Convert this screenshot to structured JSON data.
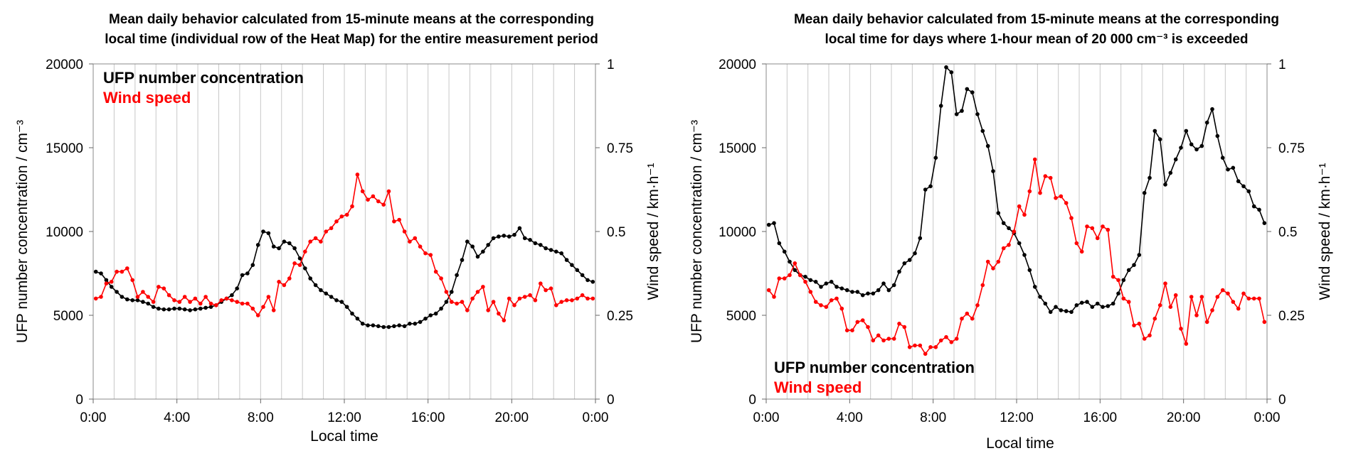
{
  "chart_data": [
    {
      "type": "line",
      "title": [
        "Mean daily behavior calculated from 15-minute means at the corresponding",
        "local time (individual row of the Heat Map) for the entire measurement period"
      ],
      "xlabel": "Local time",
      "ylabel": "UFP number concentration / cm⁻³",
      "y2label": "Wind speed / km·h⁻¹",
      "xticks": [
        "0:00",
        "4:00",
        "8:00",
        "12:00",
        "16:00",
        "20:00",
        "0:00"
      ],
      "yticks": [
        "0",
        "5000",
        "10000",
        "15000",
        "20000"
      ],
      "y2ticks": [
        "0",
        "0.25",
        "0.5",
        "0.75",
        "1"
      ],
      "ylim": [
        0,
        20000
      ],
      "y2lim": [
        0,
        1
      ],
      "xlim_hours": [
        0,
        24
      ],
      "legend_position": "top-left",
      "series": [
        {
          "name": "UFP number concentration",
          "axis": "left",
          "color": "#000000",
          "x_hours": [
            0.125,
            0.375,
            0.625,
            0.875,
            1.125,
            1.375,
            1.625,
            1.875,
            2.125,
            2.375,
            2.625,
            2.875,
            3.125,
            3.375,
            3.625,
            3.875,
            4.125,
            4.375,
            4.625,
            4.875,
            5.125,
            5.375,
            5.625,
            5.875,
            6.125,
            6.375,
            6.625,
            6.875,
            7.125,
            7.375,
            7.625,
            7.875,
            8.125,
            8.375,
            8.625,
            8.875,
            9.125,
            9.375,
            9.625,
            9.875,
            10.125,
            10.375,
            10.625,
            10.875,
            11.125,
            11.375,
            11.625,
            11.875,
            12.125,
            12.375,
            12.625,
            12.875,
            13.125,
            13.375,
            13.625,
            13.875,
            14.125,
            14.375,
            14.625,
            14.875,
            15.125,
            15.375,
            15.625,
            15.875,
            16.125,
            16.375,
            16.625,
            16.875,
            17.125,
            17.375,
            17.625,
            17.875,
            18.125,
            18.375,
            18.625,
            18.875,
            19.125,
            19.375,
            19.625,
            19.875,
            20.125,
            20.375,
            20.625,
            20.875,
            21.125,
            21.375,
            21.625,
            21.875,
            22.125,
            22.375,
            22.625,
            22.875,
            23.125,
            23.375,
            23.625,
            23.875
          ],
          "values": [
            7600,
            7500,
            7100,
            6700,
            6400,
            6100,
            5950,
            5900,
            5900,
            5800,
            5700,
            5500,
            5400,
            5350,
            5350,
            5400,
            5400,
            5350,
            5300,
            5350,
            5400,
            5450,
            5500,
            5600,
            5800,
            6000,
            6200,
            6600,
            7400,
            7500,
            8000,
            9200,
            10000,
            9900,
            9100,
            9000,
            9400,
            9300,
            9000,
            8400,
            7800,
            7200,
            6800,
            6500,
            6300,
            6100,
            5900,
            5800,
            5500,
            5100,
            4800,
            4500,
            4400,
            4400,
            4350,
            4300,
            4300,
            4350,
            4400,
            4350,
            4500,
            4500,
            4600,
            4800,
            5000,
            5100,
            5400,
            5800,
            6400,
            7400,
            8300,
            9400,
            9100,
            8500,
            8800,
            9200,
            9600,
            9700,
            9750,
            9700,
            9800,
            10200,
            9600,
            9500,
            9300,
            9200,
            9000,
            8900,
            8800,
            8700,
            8300,
            8000,
            7700,
            7400,
            7100,
            7000
          ]
        },
        {
          "name": "Wind speed",
          "axis": "right",
          "color": "#ff0000",
          "x_hours": [
            0.125,
            0.375,
            0.625,
            0.875,
            1.125,
            1.375,
            1.625,
            1.875,
            2.125,
            2.375,
            2.625,
            2.875,
            3.125,
            3.375,
            3.625,
            3.875,
            4.125,
            4.375,
            4.625,
            4.875,
            5.125,
            5.375,
            5.625,
            5.875,
            6.125,
            6.375,
            6.625,
            6.875,
            7.125,
            7.375,
            7.625,
            7.875,
            8.125,
            8.375,
            8.625,
            8.875,
            9.125,
            9.375,
            9.625,
            9.875,
            10.125,
            10.375,
            10.625,
            10.875,
            11.125,
            11.375,
            11.625,
            11.875,
            12.125,
            12.375,
            12.625,
            12.875,
            13.125,
            13.375,
            13.625,
            13.875,
            14.125,
            14.375,
            14.625,
            14.875,
            15.125,
            15.375,
            15.625,
            15.875,
            16.125,
            16.375,
            16.625,
            16.875,
            17.125,
            17.375,
            17.625,
            17.875,
            18.125,
            18.375,
            18.625,
            18.875,
            19.125,
            19.375,
            19.625,
            19.875,
            20.125,
            20.375,
            20.625,
            20.875,
            21.125,
            21.375,
            21.625,
            21.875,
            22.125,
            22.375,
            22.625,
            22.875,
            23.125,
            23.375,
            23.625,
            23.875
          ],
          "values": [
            0.3,
            0.305,
            0.345,
            0.35,
            0.38,
            0.38,
            0.39,
            0.355,
            0.305,
            0.32,
            0.305,
            0.29,
            0.335,
            0.33,
            0.31,
            0.295,
            0.29,
            0.305,
            0.29,
            0.3,
            0.285,
            0.305,
            0.285,
            0.28,
            0.295,
            0.3,
            0.295,
            0.29,
            0.285,
            0.285,
            0.27,
            0.25,
            0.275,
            0.305,
            0.265,
            0.35,
            0.34,
            0.36,
            0.405,
            0.4,
            0.44,
            0.47,
            0.48,
            0.47,
            0.5,
            0.51,
            0.53,
            0.545,
            0.55,
            0.575,
            0.67,
            0.62,
            0.595,
            0.605,
            0.59,
            0.58,
            0.62,
            0.53,
            0.535,
            0.5,
            0.47,
            0.48,
            0.455,
            0.435,
            0.43,
            0.38,
            0.36,
            0.32,
            0.29,
            0.285,
            0.29,
            0.265,
            0.3,
            0.32,
            0.335,
            0.265,
            0.29,
            0.255,
            0.235,
            0.3,
            0.28,
            0.3,
            0.305,
            0.31,
            0.295,
            0.345,
            0.325,
            0.33,
            0.28,
            0.29,
            0.295,
            0.295,
            0.3,
            0.31,
            0.3,
            0.3
          ]
        }
      ]
    },
    {
      "type": "line",
      "title": [
        "Mean daily behavior calculated from 15-minute means at the corresponding",
        "local time for days where 1-hour mean of 20 000 cm⁻³ is exceeded"
      ],
      "xlabel": "Local time",
      "ylabel": "UFP number concentration / cm⁻³",
      "y2label": "Wind speed / km·h⁻¹",
      "xticks": [
        "0:00",
        "4:00",
        "8:00",
        "12:00",
        "16:00",
        "20:00",
        "0:00"
      ],
      "yticks": [
        "0",
        "5000",
        "10000",
        "15000",
        "20000"
      ],
      "y2ticks": [
        "0",
        "0.25",
        "0.5",
        "0.75",
        "1"
      ],
      "ylim": [
        0,
        20000
      ],
      "y2lim": [
        0,
        1
      ],
      "xlim_hours": [
        0,
        24
      ],
      "legend_position": "bottom-left",
      "series": [
        {
          "name": "UFP number concentration",
          "axis": "left",
          "color": "#000000",
          "x_hours": [
            0.125,
            0.375,
            0.625,
            0.875,
            1.125,
            1.375,
            1.625,
            1.875,
            2.125,
            2.375,
            2.625,
            2.875,
            3.125,
            3.375,
            3.625,
            3.875,
            4.125,
            4.375,
            4.625,
            4.875,
            5.125,
            5.375,
            5.625,
            5.875,
            6.125,
            6.375,
            6.625,
            6.875,
            7.125,
            7.375,
            7.625,
            7.875,
            8.125,
            8.375,
            8.625,
            8.875,
            9.125,
            9.375,
            9.625,
            9.875,
            10.125,
            10.375,
            10.625,
            10.875,
            11.125,
            11.375,
            11.625,
            11.875,
            12.125,
            12.375,
            12.625,
            12.875,
            13.125,
            13.375,
            13.625,
            13.875,
            14.125,
            14.375,
            14.625,
            14.875,
            15.125,
            15.375,
            15.625,
            15.875,
            16.125,
            16.375,
            16.625,
            16.875,
            17.125,
            17.375,
            17.625,
            17.875,
            18.125,
            18.375,
            18.625,
            18.875,
            19.125,
            19.375,
            19.625,
            19.875,
            20.125,
            20.375,
            20.625,
            20.875,
            21.125,
            21.375,
            21.625,
            21.875,
            22.125,
            22.375,
            22.625,
            22.875,
            23.125,
            23.375,
            23.625,
            23.875
          ],
          "values": [
            10400,
            10500,
            9300,
            8800,
            8200,
            7700,
            7400,
            7300,
            7100,
            7000,
            6700,
            6900,
            7000,
            6700,
            6600,
            6500,
            6400,
            6400,
            6200,
            6300,
            6300,
            6500,
            6900,
            6500,
            6800,
            7600,
            8100,
            8300,
            8700,
            9600,
            12500,
            12700,
            14400,
            17500,
            19800,
            19500,
            17000,
            17200,
            18500,
            18300,
            17000,
            16000,
            15100,
            13600,
            11100,
            10500,
            10200,
            9900,
            9300,
            8600,
            7700,
            6700,
            6100,
            5700,
            5200,
            5500,
            5300,
            5250,
            5200,
            5600,
            5750,
            5800,
            5500,
            5700,
            5500,
            5550,
            5700,
            6300,
            7100,
            7700,
            8000,
            8600,
            12300,
            13200,
            16000,
            15500,
            12800,
            13500,
            14300,
            15000,
            16000,
            15200,
            14900,
            15100,
            16500,
            17300,
            15700,
            14400,
            13700,
            13800,
            13000,
            12700,
            12400,
            11500,
            11300,
            10500
          ]
        },
        {
          "name": "Wind speed",
          "axis": "right",
          "color": "#ff0000",
          "x_hours": [
            0.125,
            0.375,
            0.625,
            0.875,
            1.125,
            1.375,
            1.625,
            1.875,
            2.125,
            2.375,
            2.625,
            2.875,
            3.125,
            3.375,
            3.625,
            3.875,
            4.125,
            4.375,
            4.625,
            4.875,
            5.125,
            5.375,
            5.625,
            5.875,
            6.125,
            6.375,
            6.625,
            6.875,
            7.125,
            7.375,
            7.625,
            7.875,
            8.125,
            8.375,
            8.625,
            8.875,
            9.125,
            9.375,
            9.625,
            9.875,
            10.125,
            10.375,
            10.625,
            10.875,
            11.125,
            11.375,
            11.625,
            11.875,
            12.125,
            12.375,
            12.625,
            12.875,
            13.125,
            13.375,
            13.625,
            13.875,
            14.125,
            14.375,
            14.625,
            14.875,
            15.125,
            15.375,
            15.625,
            15.875,
            16.125,
            16.375,
            16.625,
            16.875,
            17.125,
            17.375,
            17.625,
            17.875,
            18.125,
            18.375,
            18.625,
            18.875,
            19.125,
            19.375,
            19.625,
            19.875,
            20.125,
            20.375,
            20.625,
            20.875,
            21.125,
            21.375,
            21.625,
            21.875,
            22.125,
            22.375,
            22.625,
            22.875,
            23.125,
            23.375,
            23.625,
            23.875
          ],
          "values": [
            0.325,
            0.305,
            0.36,
            0.36,
            0.37,
            0.405,
            0.37,
            0.35,
            0.32,
            0.29,
            0.28,
            0.275,
            0.295,
            0.3,
            0.27,
            0.205,
            0.205,
            0.23,
            0.235,
            0.215,
            0.175,
            0.19,
            0.175,
            0.18,
            0.18,
            0.225,
            0.215,
            0.155,
            0.16,
            0.16,
            0.135,
            0.155,
            0.155,
            0.175,
            0.185,
            0.17,
            0.18,
            0.24,
            0.255,
            0.24,
            0.28,
            0.34,
            0.41,
            0.39,
            0.41,
            0.45,
            0.46,
            0.5,
            0.575,
            0.55,
            0.62,
            0.715,
            0.615,
            0.665,
            0.66,
            0.6,
            0.605,
            0.585,
            0.54,
            0.465,
            0.44,
            0.515,
            0.51,
            0.48,
            0.515,
            0.505,
            0.365,
            0.355,
            0.3,
            0.29,
            0.22,
            0.225,
            0.18,
            0.19,
            0.24,
            0.28,
            0.345,
            0.275,
            0.31,
            0.21,
            0.165,
            0.305,
            0.25,
            0.305,
            0.23,
            0.265,
            0.305,
            0.325,
            0.315,
            0.29,
            0.27,
            0.315,
            0.3,
            0.3,
            0.3,
            0.23
          ]
        }
      ]
    }
  ]
}
